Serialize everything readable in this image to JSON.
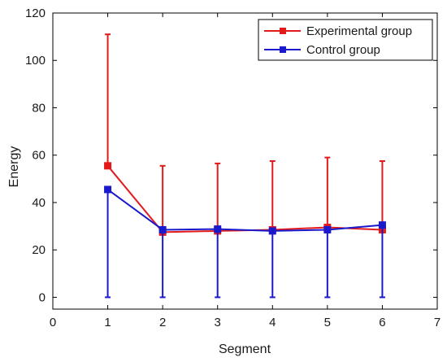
{
  "chart_data": {
    "type": "line",
    "title": "",
    "xlabel": "Segment",
    "ylabel": "Energy",
    "xlim": [
      0,
      7
    ],
    "ylim": [
      -5,
      120
    ],
    "xticks": [
      "0",
      "1",
      "2",
      "3",
      "4",
      "5",
      "6",
      "7"
    ],
    "yticks": [
      "0",
      "20",
      "40",
      "60",
      "80",
      "100",
      "120"
    ],
    "grid": false,
    "legend_position": "top-right",
    "x": [
      1,
      2,
      3,
      4,
      5,
      6
    ],
    "series": [
      {
        "name": "Experimental group",
        "color": "#e31a1c",
        "marker": "square",
        "values": [
          55.5,
          27.5,
          28,
          28.5,
          29.5,
          28.5
        ],
        "error_upper": [
          111,
          55.5,
          56.5,
          57.5,
          59,
          57.5
        ]
      },
      {
        "name": "Control group",
        "color": "#1a1acc",
        "marker": "square",
        "values": [
          45.5,
          28.5,
          28.8,
          28,
          28.5,
          30.5
        ],
        "error_lower": [
          0,
          0,
          0,
          0,
          0,
          0
        ]
      }
    ]
  }
}
